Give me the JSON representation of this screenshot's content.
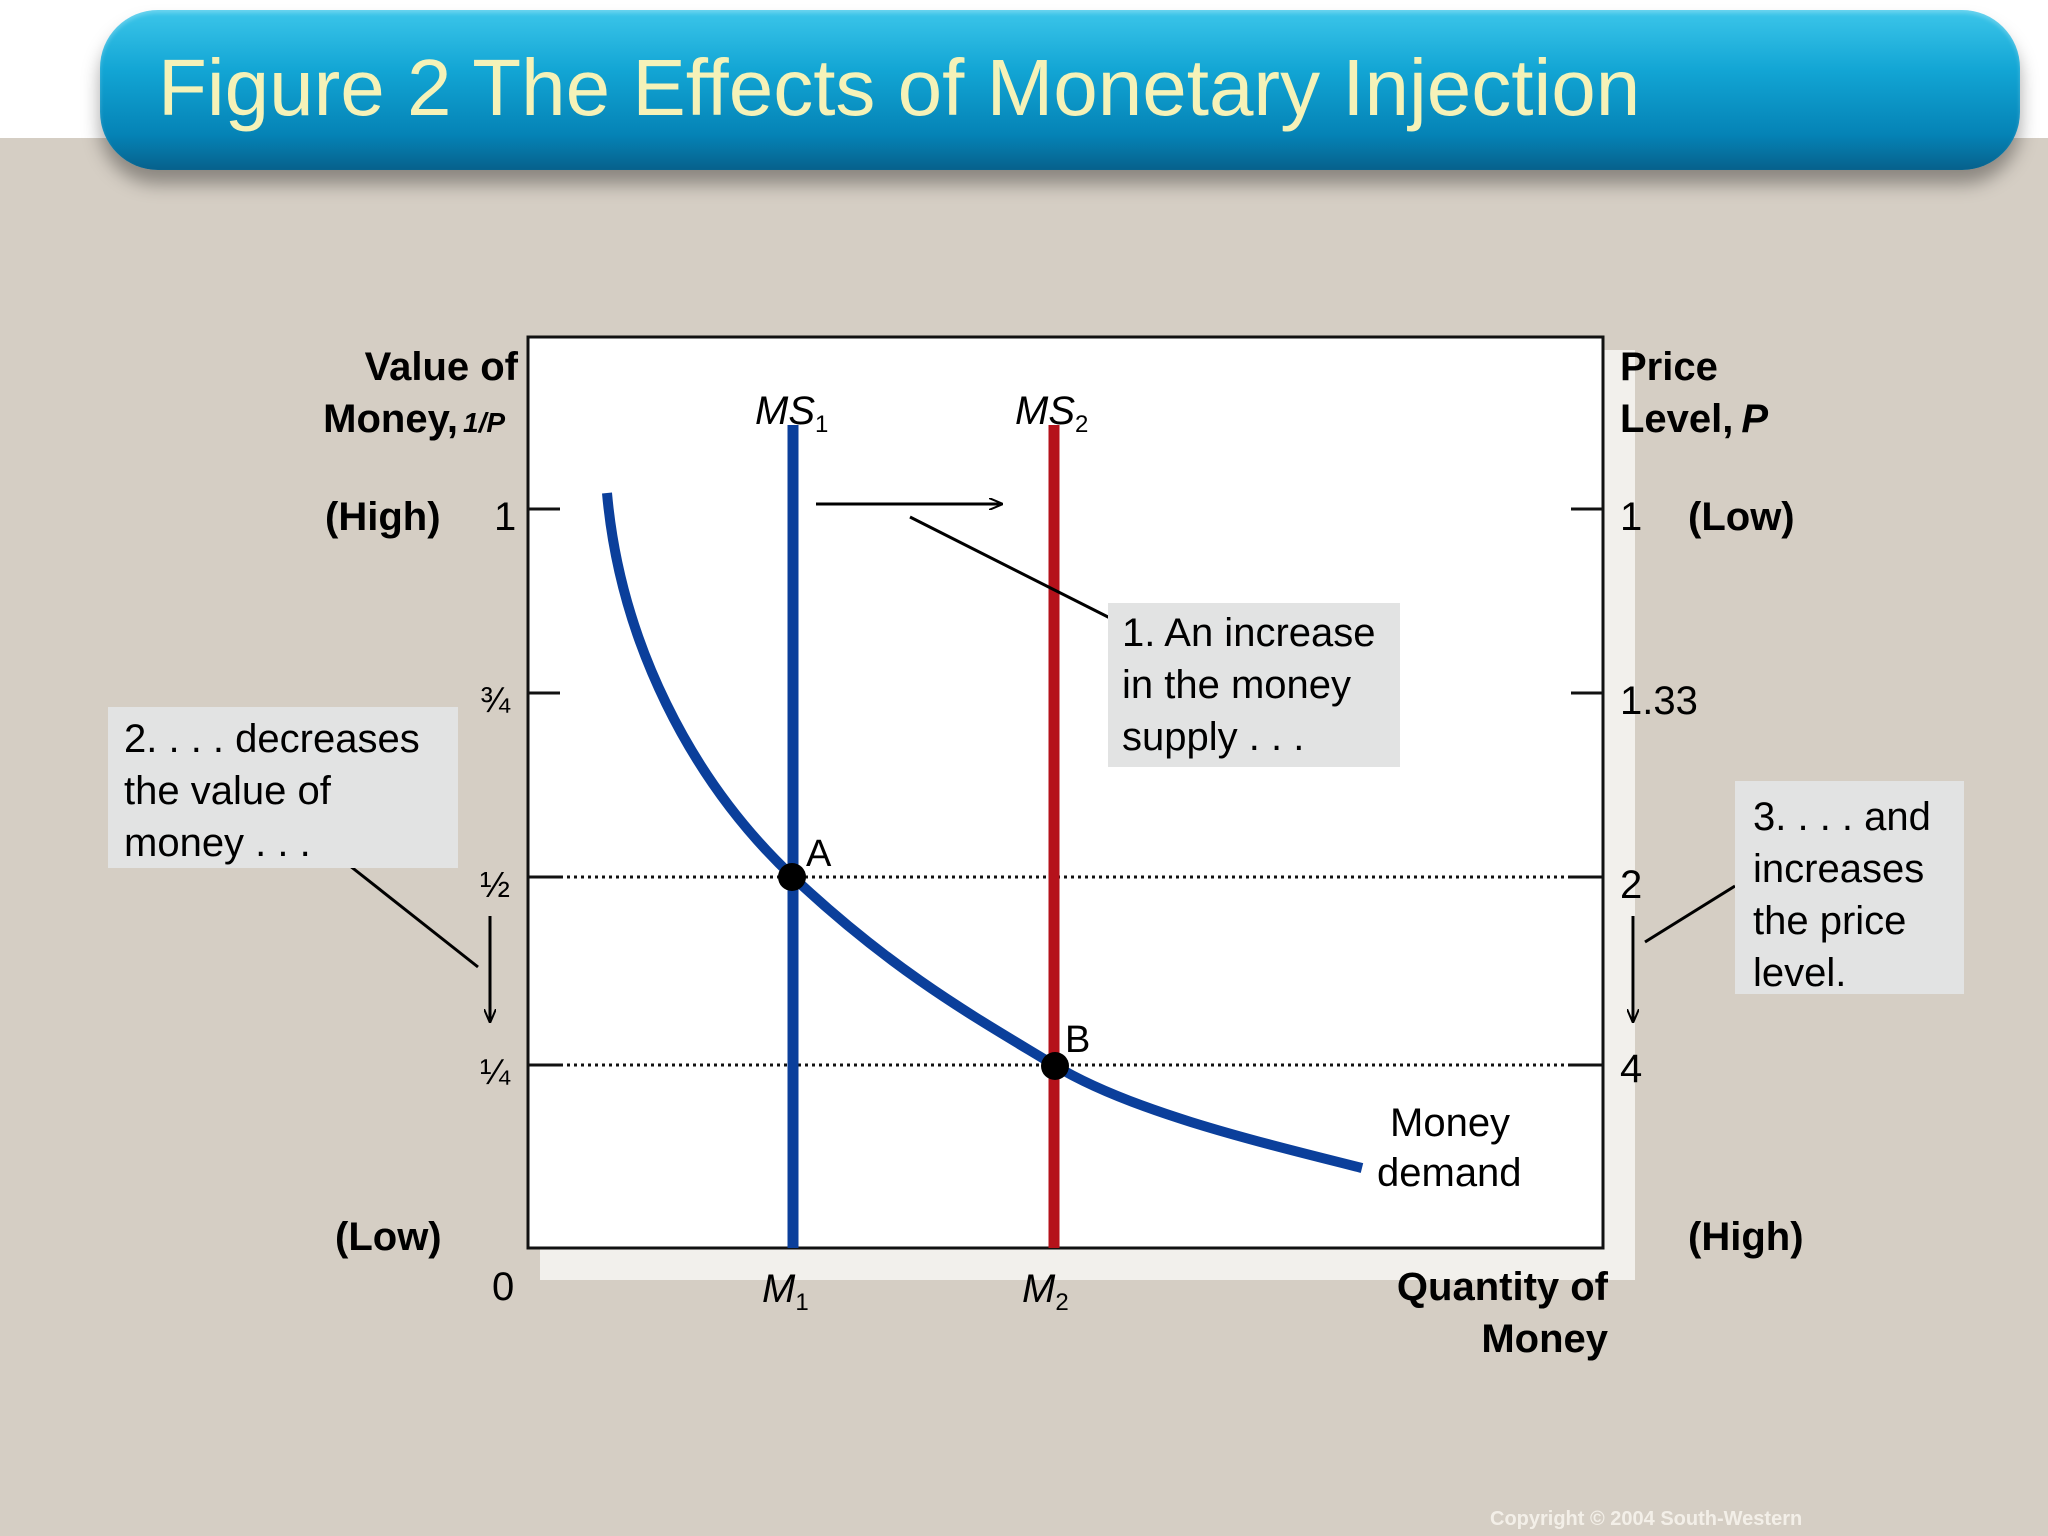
{
  "header": {
    "title": "Figure 2 The Effects of Monetary Injection"
  },
  "left_axis": {
    "label_line1": "Value of",
    "label_line2": "Money,",
    "label_unit": "1/P",
    "high": "(High)",
    "low": "(Low)",
    "ticks": [
      {
        "label": "1",
        "value": 1
      },
      {
        "label": "¾",
        "value": 0.75
      },
      {
        "label": "½",
        "value": 0.5
      },
      {
        "label": "¼",
        "value": 0.25
      }
    ],
    "origin": "0"
  },
  "right_axis": {
    "label_line1": "Price",
    "label_line2": "Level,",
    "label_var": "P",
    "low": "(Low)",
    "high": "(High)",
    "ticks": [
      {
        "label": "1",
        "value": 1
      },
      {
        "label": "1.33",
        "value": 1.33
      },
      {
        "label": "2",
        "value": 2
      },
      {
        "label": "4",
        "value": 4
      }
    ]
  },
  "x_axis": {
    "label_line1": "Quantity of",
    "label_line2": "Money",
    "m1": {
      "base": "M",
      "sub": "1"
    },
    "m2": {
      "base": "M",
      "sub": "2"
    }
  },
  "curves": {
    "ms1": {
      "base": "MS",
      "sub": "1",
      "color": "#0b3f9b"
    },
    "ms2": {
      "base": "MS",
      "sub": "2",
      "color": "#b5121b"
    },
    "demand": {
      "line1": "Money",
      "line2": "demand",
      "color": "#0b3f9b"
    }
  },
  "points": {
    "a": {
      "label": "A",
      "value_of_money": 0.5,
      "price_level": 2
    },
    "b": {
      "label": "B",
      "value_of_money": 0.25,
      "price_level": 4
    }
  },
  "callouts": {
    "c1": [
      "1. An increase",
      "in the money",
      "supply . . ."
    ],
    "c2": [
      "2. . . . decreases",
      "the value of",
      "money . . ."
    ],
    "c3": [
      "3. . . . and",
      "increases",
      "the price",
      "level."
    ]
  },
  "footer": {
    "copyright": "Copyright © 2004  South-Western"
  }
}
